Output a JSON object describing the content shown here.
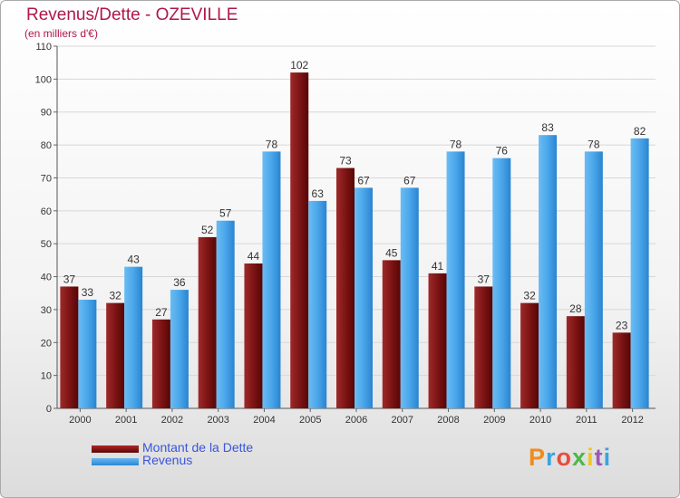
{
  "header": {
    "title": "Revenus/Dette - OZEVILLE",
    "subtitle": "(en milliers d'€)"
  },
  "logo": {
    "text": "Proxiti",
    "colors": [
      "#f08c1e",
      "#3aa3e0",
      "#e74c3c",
      "#4cb848",
      "#f2c61f",
      "#9b59b6",
      "#3aa3e0"
    ]
  },
  "chart_data": {
    "type": "bar",
    "categories": [
      "2000",
      "2001",
      "2002",
      "2003",
      "2004",
      "2005",
      "2006",
      "2007",
      "2008",
      "2009",
      "2010",
      "2011",
      "2012"
    ],
    "series": [
      {
        "name": "Montant de la Dette",
        "values": [
          37,
          32,
          27,
          52,
          44,
          102,
          73,
          45,
          41,
          37,
          32,
          28,
          23
        ],
        "color": "#7a1010"
      },
      {
        "name": "Revenus",
        "values": [
          33,
          43,
          36,
          57,
          78,
          63,
          67,
          67,
          78,
          76,
          83,
          78,
          82
        ],
        "color": "#3c9ee8"
      }
    ],
    "ylim": [
      0,
      110
    ],
    "yticks": [
      0,
      10,
      20,
      30,
      40,
      50,
      60,
      70,
      80,
      90,
      100,
      110
    ],
    "grid": true,
    "legend_position": "bottom-left"
  }
}
